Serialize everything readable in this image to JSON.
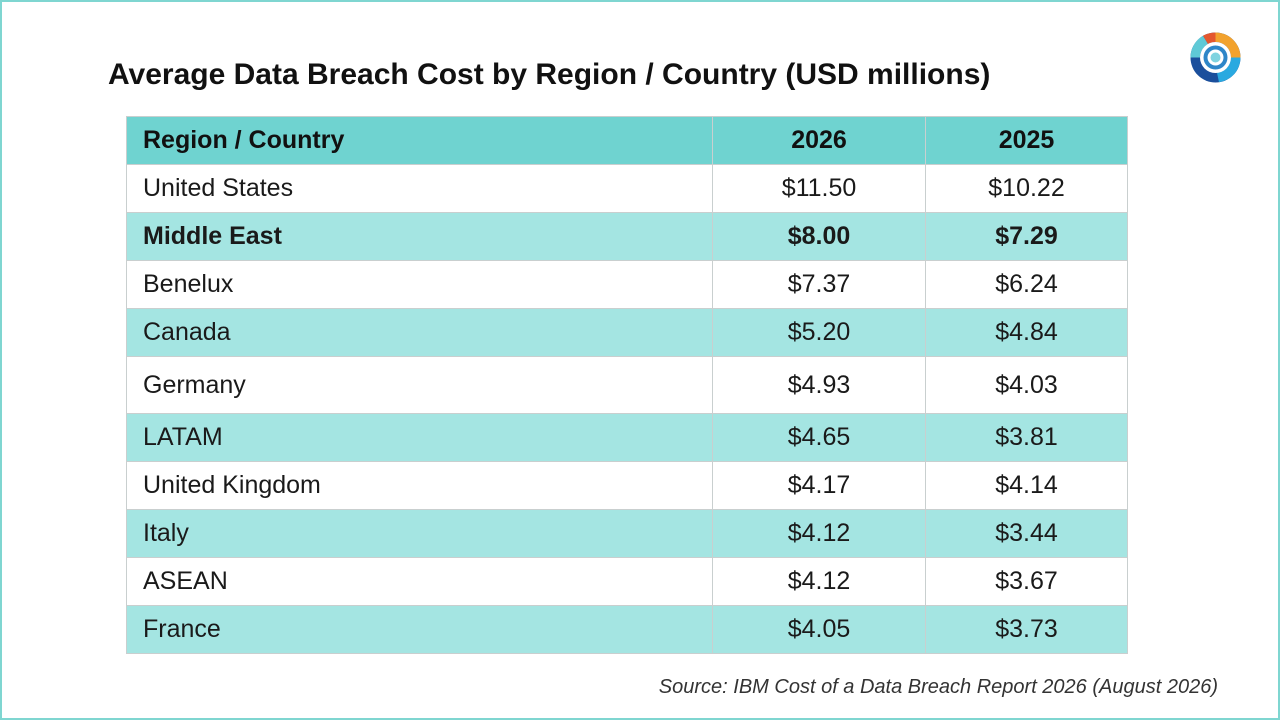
{
  "title": "Average Data Breach Cost by Region / Country (USD millions)",
  "logo_icon": "ibm-security-rings-logo",
  "table": {
    "headers": [
      "Region / Country",
      "2026",
      "2025"
    ],
    "rows": [
      {
        "region": "United States",
        "y2026": "$11.50",
        "y2025": "$10.22",
        "bold": false
      },
      {
        "region": "Middle East",
        "y2026": "$8.00",
        "y2025": "$7.29",
        "bold": true
      },
      {
        "region": "Benelux",
        "y2026": "$7.37",
        "y2025": "$6.24",
        "bold": false
      },
      {
        "region": "Canada",
        "y2026": "$5.20",
        "y2025": "$4.84",
        "bold": false
      },
      {
        "region": "Germany",
        "y2026": "$4.93",
        "y2025": "$4.03",
        "bold": false
      },
      {
        "region": "LATAM",
        "y2026": "$4.65",
        "y2025": "$3.81",
        "bold": false
      },
      {
        "region": "United Kingdom",
        "y2026": "$4.17",
        "y2025": "$4.14",
        "bold": false
      },
      {
        "region": "Italy",
        "y2026": "$4.12",
        "y2025": "$3.44",
        "bold": false
      },
      {
        "region": "ASEAN",
        "y2026": "$4.12",
        "y2025": "$3.67",
        "bold": false
      },
      {
        "region": "France",
        "y2026": "$4.05",
        "y2025": "$3.73",
        "bold": false
      }
    ]
  },
  "source": "Source: IBM Cost of a Data Breach Report 2026 (August 2026)",
  "colors": {
    "header_bg": "#6fd3d0",
    "band_bg": "#a4e5e2",
    "frame_border": "#7fd6d1"
  }
}
